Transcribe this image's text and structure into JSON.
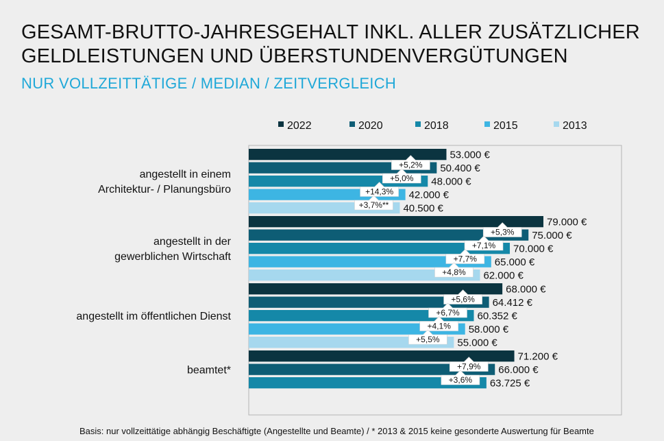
{
  "header": {
    "title_line1": "GESAMT-BRUTTO-JAHRESGEHALT INKL. ALLER ZUSÄTZLICHER",
    "title_line2": "GELDLEISTUNGEN UND ÜBERSTUNDENVERGÜTUNGEN",
    "subtitle": "NUR VOLLZEITTÄTIGE / MEDIAN / ZEITVERGLEICH"
  },
  "footnote": "Basis: nur vollzeittätige abhängig Beschäftigte (Angestellte und Beamte) / * 2013 & 2015 keine gesonderte Auswertung für Beamte",
  "chart_data": {
    "type": "bar",
    "orientation": "horizontal",
    "title": "GESAMT-BRUTTO-JAHRESGEHALT INKL. ALLER ZUSÄTZLICHER GELDLEISTUNGEN UND ÜBERSTUNDENVERGÜTUNGEN",
    "subtitle": "NUR VOLLZEITTÄTIGE / MEDIAN / ZEITVERGLEICH",
    "xlim": [
      0,
      85000
    ],
    "legend_position": "top",
    "series": [
      {
        "name": "2022",
        "color": "#0b3440"
      },
      {
        "name": "2020",
        "color": "#0e5d75"
      },
      {
        "name": "2018",
        "color": "#1588a8"
      },
      {
        "name": "2015",
        "color": "#3db5e3"
      },
      {
        "name": "2013",
        "color": "#a6d8ee"
      }
    ],
    "groups": [
      {
        "label_lines": [
          "angestellt in einem",
          "Architektur- / Planungsbüro"
        ],
        "bars": [
          {
            "series": "2022",
            "value": 53000,
            "label": "53.000 €"
          },
          {
            "series": "2020",
            "value": 50400,
            "label": "50.400 €"
          },
          {
            "series": "2018",
            "value": 48000,
            "label": "48.000 €"
          },
          {
            "series": "2015",
            "value": 42000,
            "label": "42.000 €"
          },
          {
            "series": "2013",
            "value": 40500,
            "label": "40.500 €"
          }
        ],
        "changes": [
          {
            "text": "+5,2%",
            "between": [
              "2020",
              "2022"
            ]
          },
          {
            "text": "+5,0%",
            "between": [
              "2018",
              "2020"
            ]
          },
          {
            "text": "+14,3%",
            "between": [
              "2015",
              "2018"
            ]
          },
          {
            "text": "+3,7%**",
            "between": [
              "2013",
              "2015"
            ]
          }
        ]
      },
      {
        "label_lines": [
          "angestellt in der",
          "gewerblichen Wirtschaft"
        ],
        "bars": [
          {
            "series": "2022",
            "value": 79000,
            "label": "79.000 €"
          },
          {
            "series": "2020",
            "value": 75000,
            "label": "75.000 €"
          },
          {
            "series": "2018",
            "value": 70000,
            "label": "70.000 €"
          },
          {
            "series": "2015",
            "value": 65000,
            "label": "65.000 €"
          },
          {
            "series": "2013",
            "value": 62000,
            "label": "62.000 €"
          }
        ],
        "changes": [
          {
            "text": "+5,3%",
            "between": [
              "2020",
              "2022"
            ]
          },
          {
            "text": "+7,1%",
            "between": [
              "2018",
              "2020"
            ]
          },
          {
            "text": "+7,7%",
            "between": [
              "2015",
              "2018"
            ]
          },
          {
            "text": "+4,8%",
            "between": [
              "2013",
              "2015"
            ]
          }
        ]
      },
      {
        "label_lines": [
          "angestellt im öffentlichen Dienst"
        ],
        "bars": [
          {
            "series": "2022",
            "value": 68000,
            "label": "68.000 €"
          },
          {
            "series": "2020",
            "value": 64412,
            "label": "64.412 €"
          },
          {
            "series": "2018",
            "value": 60352,
            "label": "60.352 €"
          },
          {
            "series": "2015",
            "value": 58000,
            "label": "58.000 €"
          },
          {
            "series": "2013",
            "value": 55000,
            "label": "55.000 €"
          }
        ],
        "changes": [
          {
            "text": "+5,6%",
            "between": [
              "2020",
              "2022"
            ]
          },
          {
            "text": "+6,7%",
            "between": [
              "2018",
              "2020"
            ]
          },
          {
            "text": "+4,1%",
            "between": [
              "2015",
              "2018"
            ]
          },
          {
            "text": "+5,5%",
            "between": [
              "2013",
              "2015"
            ]
          }
        ]
      },
      {
        "label_lines": [
          "beamtet*"
        ],
        "bars": [
          {
            "series": "2022",
            "value": 71200,
            "label": "71.200 €"
          },
          {
            "series": "2020",
            "value": 66000,
            "label": "66.000 €"
          },
          {
            "series": "2018",
            "value": 63725,
            "label": "63.725 €"
          }
        ],
        "changes": [
          {
            "text": "+7,9%",
            "between": [
              "2020",
              "2022"
            ]
          },
          {
            "text": "+3,6%",
            "between": [
              "2018",
              "2020"
            ]
          }
        ]
      }
    ]
  }
}
